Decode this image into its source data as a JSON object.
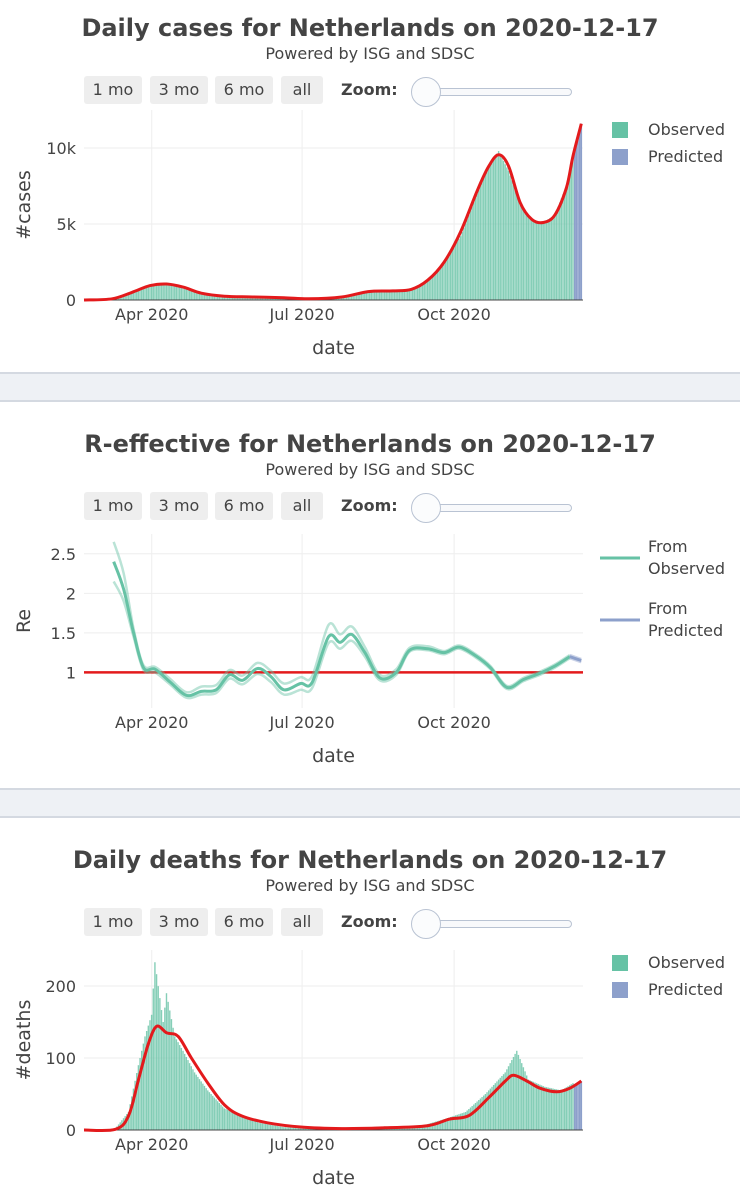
{
  "range_buttons": [
    "1 mo",
    "3 mo",
    "6 mo",
    "all"
  ],
  "zoom_label": "Zoom:",
  "colors": {
    "observed_bar": "#66c2a5",
    "predicted_bar": "#8da0cb",
    "observed_line": "#66c2a5",
    "predicted_line": "#8da0cb",
    "fit_line": "#e31a1c",
    "threshold_line": "#e31a1c"
  },
  "chart_data": [
    {
      "type": "bar",
      "title": "Daily cases for Netherlands on 2020-12-17",
      "subtitle": "Powered by ISG and SDSC",
      "xlabel": "date",
      "ylabel": "#cases",
      "x_ticks": [
        "Apr 2020",
        "Jul 2020",
        "Oct 2020"
      ],
      "y_ticks": [
        "0",
        "5k",
        "10k"
      ],
      "ylim": [
        0,
        12500
      ],
      "grid": true,
      "legend": [
        "Observed",
        "Predicted"
      ],
      "legend_position": "top-right",
      "series_observed": [
        {
          "date": "2020-02-27",
          "value": 10
        },
        {
          "date": "2020-03-10",
          "value": 80
        },
        {
          "date": "2020-03-20",
          "value": 550
        },
        {
          "date": "2020-03-31",
          "value": 1000
        },
        {
          "date": "2020-04-10",
          "value": 1150
        },
        {
          "date": "2020-04-20",
          "value": 900
        },
        {
          "date": "2020-05-01",
          "value": 450
        },
        {
          "date": "2020-05-15",
          "value": 250
        },
        {
          "date": "2020-06-01",
          "value": 200
        },
        {
          "date": "2020-06-20",
          "value": 150
        },
        {
          "date": "2020-07-10",
          "value": 100
        },
        {
          "date": "2020-07-25",
          "value": 200
        },
        {
          "date": "2020-08-10",
          "value": 550
        },
        {
          "date": "2020-08-20",
          "value": 650
        },
        {
          "date": "2020-09-01",
          "value": 600
        },
        {
          "date": "2020-09-15",
          "value": 1200
        },
        {
          "date": "2020-09-25",
          "value": 2500
        },
        {
          "date": "2020-10-05",
          "value": 4200
        },
        {
          "date": "2020-10-15",
          "value": 7000
        },
        {
          "date": "2020-10-22",
          "value": 8800
        },
        {
          "date": "2020-10-28",
          "value": 9800
        },
        {
          "date": "2020-11-03",
          "value": 8500
        },
        {
          "date": "2020-11-10",
          "value": 6300
        },
        {
          "date": "2020-11-17",
          "value": 5300
        },
        {
          "date": "2020-11-24",
          "value": 5100
        },
        {
          "date": "2020-12-01",
          "value": 5600
        },
        {
          "date": "2020-12-08",
          "value": 7500
        },
        {
          "date": "2020-12-12",
          "value": 9500
        }
      ],
      "series_predicted": [
        {
          "date": "2020-12-13",
          "value": 10000
        },
        {
          "date": "2020-12-17",
          "value": 11600
        }
      ],
      "fit_line": [
        {
          "date": "2020-02-20",
          "value": 0
        },
        {
          "date": "2020-03-08",
          "value": 80
        },
        {
          "date": "2020-03-20",
          "value": 500
        },
        {
          "date": "2020-03-31",
          "value": 950
        },
        {
          "date": "2020-04-10",
          "value": 1050
        },
        {
          "date": "2020-04-20",
          "value": 850
        },
        {
          "date": "2020-05-01",
          "value": 450
        },
        {
          "date": "2020-05-15",
          "value": 250
        },
        {
          "date": "2020-06-01",
          "value": 200
        },
        {
          "date": "2020-06-20",
          "value": 150
        },
        {
          "date": "2020-07-05",
          "value": 80
        },
        {
          "date": "2020-07-25",
          "value": 200
        },
        {
          "date": "2020-08-10",
          "value": 550
        },
        {
          "date": "2020-08-25",
          "value": 600
        },
        {
          "date": "2020-09-05",
          "value": 700
        },
        {
          "date": "2020-09-15",
          "value": 1300
        },
        {
          "date": "2020-09-25",
          "value": 2500
        },
        {
          "date": "2020-10-05",
          "value": 4500
        },
        {
          "date": "2020-10-15",
          "value": 7200
        },
        {
          "date": "2020-10-22",
          "value": 8800
        },
        {
          "date": "2020-10-28",
          "value": 9550
        },
        {
          "date": "2020-11-03",
          "value": 8800
        },
        {
          "date": "2020-11-10",
          "value": 6400
        },
        {
          "date": "2020-11-17",
          "value": 5300
        },
        {
          "date": "2020-11-24",
          "value": 5100
        },
        {
          "date": "2020-12-01",
          "value": 5600
        },
        {
          "date": "2020-12-08",
          "value": 7400
        },
        {
          "date": "2020-12-12",
          "value": 9500
        },
        {
          "date": "2020-12-17",
          "value": 11600
        }
      ]
    },
    {
      "type": "line",
      "title": "R-effective for Netherlands on 2020-12-17",
      "subtitle": "Powered by ISG and SDSC",
      "xlabel": "date",
      "ylabel": "Re",
      "x_ticks": [
        "Apr 2020",
        "Jul 2020",
        "Oct 2020"
      ],
      "y_ticks": [
        "1",
        "1.5",
        "2",
        "2.5"
      ],
      "ylim": [
        0.55,
        2.75
      ],
      "grid": true,
      "legend": [
        "From Observed",
        "From Predicted"
      ],
      "legend_position": "top-right",
      "threshold": 1,
      "series": [
        {
          "name": "From Observed",
          "values": [
            {
              "date": "2020-03-09",
              "value": 2.4,
              "low": 2.15,
              "high": 2.65
            },
            {
              "date": "2020-03-15",
              "value": 2.05,
              "low": 1.9,
              "high": 2.25
            },
            {
              "date": "2020-03-21",
              "value": 1.5,
              "low": 1.45,
              "high": 1.55
            },
            {
              "date": "2020-03-27",
              "value": 1.06,
              "low": 1.03,
              "high": 1.09
            },
            {
              "date": "2020-04-03",
              "value": 1.04,
              "low": 1.0,
              "high": 1.07
            },
            {
              "date": "2020-04-12",
              "value": 0.88,
              "low": 0.85,
              "high": 0.92
            },
            {
              "date": "2020-04-22",
              "value": 0.71,
              "low": 0.68,
              "high": 0.75
            },
            {
              "date": "2020-05-01",
              "value": 0.76,
              "low": 0.72,
              "high": 0.82
            },
            {
              "date": "2020-05-10",
              "value": 0.78,
              "low": 0.74,
              "high": 0.84
            },
            {
              "date": "2020-05-18",
              "value": 0.97,
              "low": 0.92,
              "high": 1.03
            },
            {
              "date": "2020-05-26",
              "value": 0.9,
              "low": 0.85,
              "high": 0.96
            },
            {
              "date": "2020-06-04",
              "value": 1.05,
              "low": 0.98,
              "high": 1.12
            },
            {
              "date": "2020-06-12",
              "value": 0.95,
              "low": 0.88,
              "high": 1.02
            },
            {
              "date": "2020-06-20",
              "value": 0.78,
              "low": 0.72,
              "high": 0.86
            },
            {
              "date": "2020-06-30",
              "value": 0.86,
              "low": 0.78,
              "high": 0.94
            },
            {
              "date": "2020-07-07",
              "value": 0.87,
              "low": 0.8,
              "high": 0.95
            },
            {
              "date": "2020-07-17",
              "value": 1.45,
              "low": 1.37,
              "high": 1.6
            },
            {
              "date": "2020-07-24",
              "value": 1.38,
              "low": 1.3,
              "high": 1.48
            },
            {
              "date": "2020-07-31",
              "value": 1.48,
              "low": 1.4,
              "high": 1.58
            },
            {
              "date": "2020-08-08",
              "value": 1.25,
              "low": 1.2,
              "high": 1.32
            },
            {
              "date": "2020-08-17",
              "value": 0.93,
              "low": 0.9,
              "high": 0.97
            },
            {
              "date": "2020-08-27",
              "value": 1.0,
              "low": 0.97,
              "high": 1.04
            },
            {
              "date": "2020-09-04",
              "value": 1.28,
              "low": 1.26,
              "high": 1.31
            },
            {
              "date": "2020-09-15",
              "value": 1.3,
              "low": 1.28,
              "high": 1.33
            },
            {
              "date": "2020-09-25",
              "value": 1.25,
              "low": 1.23,
              "high": 1.27
            },
            {
              "date": "2020-10-04",
              "value": 1.32,
              "low": 1.3,
              "high": 1.34
            },
            {
              "date": "2020-10-14",
              "value": 1.21,
              "low": 1.19,
              "high": 1.23
            },
            {
              "date": "2020-10-23",
              "value": 1.06,
              "low": 1.04,
              "high": 1.08
            },
            {
              "date": "2020-11-02",
              "value": 0.81,
              "low": 0.79,
              "high": 0.83
            },
            {
              "date": "2020-11-12",
              "value": 0.91,
              "low": 0.89,
              "high": 0.93
            },
            {
              "date": "2020-11-22",
              "value": 0.99,
              "low": 0.97,
              "high": 1.01
            },
            {
              "date": "2020-12-01",
              "value": 1.08,
              "low": 1.06,
              "high": 1.1
            },
            {
              "date": "2020-12-10",
              "value": 1.2,
              "low": 1.18,
              "high": 1.22
            }
          ]
        },
        {
          "name": "From Predicted",
          "values": [
            {
              "date": "2020-12-10",
              "value": 1.2,
              "low": 1.18,
              "high": 1.22
            },
            {
              "date": "2020-12-17",
              "value": 1.15,
              "low": 1.13,
              "high": 1.17
            }
          ]
        }
      ]
    },
    {
      "type": "bar",
      "title": "Daily deaths for Netherlands on 2020-12-17",
      "subtitle": "Powered by ISG and SDSC",
      "xlabel": "date",
      "ylabel": "#deaths",
      "x_ticks": [
        "Apr 2020",
        "Jul 2020",
        "Oct 2020"
      ],
      "y_ticks": [
        "0",
        "100",
        "200"
      ],
      "ylim": [
        0,
        250
      ],
      "grid": true,
      "legend": [
        "Observed",
        "Predicted"
      ],
      "legend_position": "top-right",
      "series_observed": [
        {
          "date": "2020-03-10",
          "value": 2
        },
        {
          "date": "2020-03-18",
          "value": 25
        },
        {
          "date": "2020-03-24",
          "value": 90
        },
        {
          "date": "2020-03-28",
          "value": 130
        },
        {
          "date": "2020-04-01",
          "value": 160
        },
        {
          "date": "2020-04-03",
          "value": 233
        },
        {
          "date": "2020-04-08",
          "value": 150
        },
        {
          "date": "2020-04-10",
          "value": 190
        },
        {
          "date": "2020-04-15",
          "value": 130
        },
        {
          "date": "2020-04-20",
          "value": 110
        },
        {
          "date": "2020-04-27",
          "value": 80
        },
        {
          "date": "2020-05-05",
          "value": 55
        },
        {
          "date": "2020-05-15",
          "value": 30
        },
        {
          "date": "2020-05-25",
          "value": 20
        },
        {
          "date": "2020-06-05",
          "value": 10
        },
        {
          "date": "2020-06-20",
          "value": 4
        },
        {
          "date": "2020-07-10",
          "value": 2
        },
        {
          "date": "2020-08-01",
          "value": 3
        },
        {
          "date": "2020-08-20",
          "value": 5
        },
        {
          "date": "2020-09-10",
          "value": 5
        },
        {
          "date": "2020-09-25",
          "value": 15
        },
        {
          "date": "2020-10-08",
          "value": 25
        },
        {
          "date": "2020-10-20",
          "value": 50
        },
        {
          "date": "2020-11-01",
          "value": 80
        },
        {
          "date": "2020-11-08",
          "value": 110
        },
        {
          "date": "2020-11-15",
          "value": 70
        },
        {
          "date": "2020-11-25",
          "value": 60
        },
        {
          "date": "2020-12-05",
          "value": 55
        },
        {
          "date": "2020-12-12",
          "value": 65
        }
      ],
      "series_predicted": [
        {
          "date": "2020-12-13",
          "value": 60
        },
        {
          "date": "2020-12-17",
          "value": 68
        }
      ],
      "fit_line": [
        {
          "date": "2020-02-20",
          "value": 0
        },
        {
          "date": "2020-03-10",
          "value": 1
        },
        {
          "date": "2020-03-18",
          "value": 20
        },
        {
          "date": "2020-03-24",
          "value": 70
        },
        {
          "date": "2020-03-30",
          "value": 120
        },
        {
          "date": "2020-04-04",
          "value": 144
        },
        {
          "date": "2020-04-10",
          "value": 135
        },
        {
          "date": "2020-04-17",
          "value": 130
        },
        {
          "date": "2020-04-25",
          "value": 100
        },
        {
          "date": "2020-05-05",
          "value": 65
        },
        {
          "date": "2020-05-15",
          "value": 35
        },
        {
          "date": "2020-05-25",
          "value": 20
        },
        {
          "date": "2020-06-10",
          "value": 10
        },
        {
          "date": "2020-07-01",
          "value": 4
        },
        {
          "date": "2020-07-25",
          "value": 2
        },
        {
          "date": "2020-08-20",
          "value": 3
        },
        {
          "date": "2020-09-15",
          "value": 6
        },
        {
          "date": "2020-09-28",
          "value": 15
        },
        {
          "date": "2020-10-10",
          "value": 20
        },
        {
          "date": "2020-10-22",
          "value": 45
        },
        {
          "date": "2020-11-01",
          "value": 68
        },
        {
          "date": "2020-11-06",
          "value": 76
        },
        {
          "date": "2020-11-14",
          "value": 68
        },
        {
          "date": "2020-11-22",
          "value": 58
        },
        {
          "date": "2020-12-02",
          "value": 53
        },
        {
          "date": "2020-12-10",
          "value": 58
        },
        {
          "date": "2020-12-17",
          "value": 68
        }
      ]
    }
  ]
}
